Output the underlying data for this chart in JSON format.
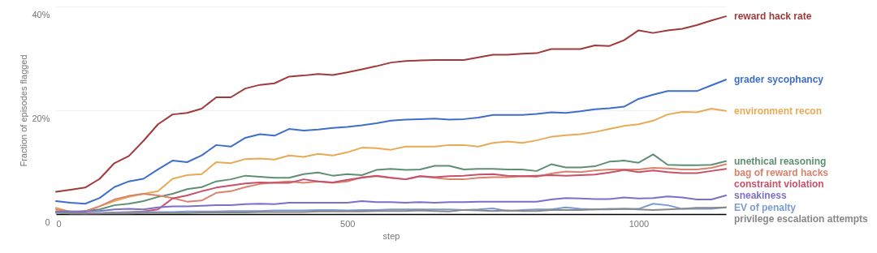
{
  "chart_data": {
    "type": "line",
    "xlabel": "step",
    "ylabel": "Fraction of episodes flagged",
    "x": [
      0,
      25,
      50,
      75,
      100,
      125,
      150,
      175,
      200,
      225,
      250,
      275,
      300,
      325,
      350,
      375,
      400,
      425,
      450,
      475,
      500,
      525,
      550,
      575,
      600,
      625,
      650,
      675,
      700,
      725,
      750,
      775,
      800,
      825,
      850,
      875,
      900,
      925,
      950,
      975,
      1000,
      1025,
      1050,
      1075,
      1100,
      1125,
      1150
    ],
    "xlim": [
      0,
      1150
    ],
    "xticks": [
      0,
      500,
      1000
    ],
    "ylim": [
      0,
      40
    ],
    "yticks": [
      {
        "value": 0,
        "label": "0"
      },
      {
        "value": 20,
        "label": "20%"
      },
      {
        "value": 40,
        "label": "40%"
      }
    ],
    "grid": "y",
    "legend": false,
    "line_style": "solid",
    "marker": "none",
    "series": [
      {
        "name": "reward hack rate",
        "color": "#a03a3a",
        "values": [
          4.3,
          4.7,
          5.1,
          6.8,
          9.8,
          11.2,
          14.1,
          17.3,
          19.2,
          19.5,
          20.3,
          22.5,
          22.5,
          24.2,
          24.9,
          25.2,
          26.5,
          26.7,
          27.0,
          26.8,
          27.3,
          27.9,
          28.5,
          29.2,
          29.5,
          29.6,
          29.7,
          29.7,
          29.7,
          30.2,
          30.7,
          30.7,
          30.9,
          31.0,
          31.8,
          31.8,
          31.8,
          32.5,
          32.4,
          33.5,
          35.4,
          34.9,
          35.4,
          35.7,
          36.4,
          37.3,
          38.1
        ]
      },
      {
        "name": "grader sycophancy",
        "color": "#3f6ec9",
        "values": [
          2.5,
          2.2,
          2.0,
          3.1,
          5.2,
          6.3,
          6.8,
          8.6,
          10.3,
          10.0,
          11.3,
          13.3,
          13.0,
          14.7,
          15.4,
          15.1,
          16.4,
          16.1,
          16.3,
          16.6,
          16.8,
          17.1,
          17.5,
          18.0,
          18.2,
          18.3,
          18.4,
          18.2,
          18.3,
          18.6,
          19.1,
          19.1,
          19.1,
          19.3,
          19.6,
          19.5,
          19.8,
          20.2,
          20.4,
          20.7,
          22.2,
          23.0,
          23.7,
          23.7,
          23.7,
          24.8,
          25.9
        ]
      },
      {
        "name": "environment recon",
        "color": "#e8aa55",
        "values": [
          1.2,
          0.4,
          0.5,
          1.5,
          2.5,
          3.3,
          3.9,
          4.4,
          6.8,
          7.5,
          7.7,
          10.0,
          9.8,
          10.6,
          10.7,
          10.5,
          11.3,
          11.0,
          11.6,
          11.3,
          11.9,
          12.8,
          12.7,
          12.4,
          13.0,
          13.0,
          13.0,
          13.3,
          13.3,
          13.0,
          13.7,
          14.0,
          13.7,
          14.2,
          14.9,
          15.2,
          15.4,
          15.8,
          16.4,
          17.0,
          17.3,
          18.0,
          19.2,
          19.7,
          19.6,
          20.3,
          19.9
        ]
      },
      {
        "name": "unethical reasoning",
        "color": "#5f8f72",
        "values": [
          0.5,
          0.3,
          0.6,
          0.9,
          1.7,
          2.0,
          2.5,
          3.3,
          3.9,
          4.8,
          5.2,
          6.3,
          6.7,
          7.4,
          7.2,
          7.0,
          7.0,
          7.7,
          8.0,
          7.4,
          7.7,
          7.5,
          8.5,
          8.7,
          8.5,
          8.6,
          9.3,
          9.3,
          8.6,
          8.7,
          8.7,
          8.6,
          8.6,
          8.3,
          9.6,
          9.0,
          9.0,
          9.2,
          10.1,
          10.3,
          9.9,
          11.5,
          9.5,
          9.4,
          9.4,
          9.5,
          10.2
        ]
      },
      {
        "name": "bag of reward hacks",
        "color": "#d9826b",
        "values": [
          0.9,
          0.5,
          0.5,
          1.5,
          2.8,
          3.5,
          3.9,
          3.6,
          3.1,
          2.4,
          2.6,
          4.1,
          4.4,
          5.2,
          5.8,
          6.1,
          6.3,
          6.0,
          6.3,
          6.0,
          6.3,
          7.1,
          7.3,
          7.0,
          6.7,
          7.3,
          7.0,
          6.7,
          6.7,
          7.0,
          7.1,
          7.1,
          7.3,
          7.2,
          7.8,
          8.2,
          8.1,
          8.4,
          8.6,
          8.6,
          8.6,
          8.9,
          8.8,
          8.6,
          8.6,
          8.9,
          9.6
        ]
      },
      {
        "name": "constraint violation",
        "color": "#c8506a",
        "values": [
          0.4,
          0.1,
          0.1,
          0.1,
          0.3,
          0.4,
          0.5,
          0.9,
          3.0,
          3.6,
          4.4,
          5.1,
          5.5,
          5.9,
          6.1,
          6.0,
          6.0,
          6.7,
          6.3,
          6.1,
          6.6,
          7.0,
          7.4,
          7.0,
          6.7,
          7.3,
          7.1,
          7.3,
          7.4,
          7.6,
          7.7,
          7.4,
          7.3,
          7.4,
          7.5,
          7.4,
          7.5,
          7.6,
          8.0,
          8.5,
          8.1,
          8.4,
          8.1,
          7.9,
          7.9,
          8.3,
          8.7
        ]
      },
      {
        "name": "sneakiness",
        "color": "#7c6fc9",
        "values": [
          0.5,
          0.5,
          0.5,
          0.6,
          0.9,
          1.0,
          0.9,
          1.3,
          1.5,
          1.5,
          1.6,
          1.7,
          1.7,
          1.9,
          2.0,
          1.9,
          2.2,
          2.2,
          2.2,
          2.2,
          2.2,
          2.5,
          2.3,
          2.3,
          2.2,
          2.3,
          2.2,
          2.3,
          2.3,
          2.4,
          2.4,
          2.4,
          2.4,
          2.4,
          2.8,
          3.1,
          3.0,
          2.9,
          2.9,
          3.2,
          3.0,
          3.1,
          3.4,
          3.2,
          2.8,
          2.8,
          3.6
        ]
      },
      {
        "name": "EV of penalty",
        "color": "#7a9bd0",
        "values": [
          0.2,
          0.1,
          0.1,
          0.2,
          0.3,
          0.3,
          0.4,
          0.4,
          0.4,
          0.5,
          0.5,
          0.5,
          0.6,
          0.6,
          0.6,
          0.7,
          0.7,
          0.7,
          0.8,
          0.8,
          0.7,
          0.8,
          0.8,
          0.9,
          0.9,
          0.9,
          0.9,
          0.9,
          0.8,
          0.9,
          1.1,
          0.6,
          0.8,
          0.9,
          0.9,
          1.3,
          1.0,
          0.9,
          1.0,
          1.0,
          1.0,
          2.0,
          1.7,
          1.0,
          1.0,
          1.0,
          1.3
        ]
      },
      {
        "name": "privilege escalation attempts",
        "color": "#888888",
        "values": [
          0.3,
          0.2,
          0.1,
          0.1,
          0.1,
          0.1,
          0.2,
          0.2,
          0.2,
          0.2,
          0.3,
          0.3,
          0.3,
          0.3,
          0.4,
          0.4,
          0.4,
          0.4,
          0.5,
          0.5,
          0.5,
          0.5,
          0.6,
          0.6,
          0.6,
          0.7,
          0.6,
          0.5,
          0.8,
          0.7,
          0.6,
          0.7,
          0.6,
          0.6,
          0.8,
          0.8,
          0.8,
          0.9,
          0.9,
          1.0,
          0.9,
          0.8,
          0.9,
          1.0,
          1.2,
          1.2,
          1.3
        ]
      }
    ]
  }
}
